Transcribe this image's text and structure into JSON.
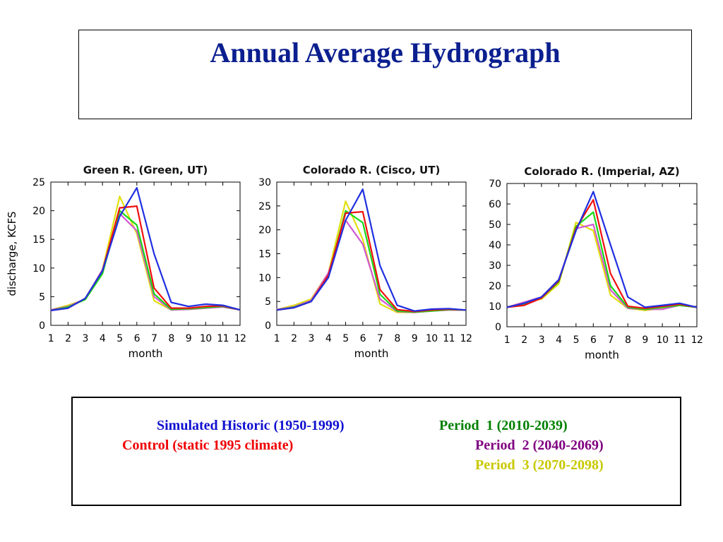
{
  "title": "Annual Average Hydrograph",
  "series_styles": [
    {
      "key": "historic",
      "color": "#1f2fe0"
    },
    {
      "key": "control",
      "color": "#f01010"
    },
    {
      "key": "p1",
      "color": "#18d818"
    },
    {
      "key": "p2",
      "color": "#d05ad0"
    },
    {
      "key": "p3",
      "color": "#e0e010"
    }
  ],
  "legend": {
    "historic": "Simulated Historic (1950-1999)",
    "p1": "Period  1 (2010-2039)",
    "control": "Control (static 1995 climate)",
    "p2": "Period  2 (2040-2069)",
    "p3": "Period  3 (2070-2098)",
    "colors": {
      "historic": "#1010d0",
      "p1": "#008000",
      "control": "#f00000",
      "p2": "#800080",
      "p3": "#c8c800"
    }
  },
  "chart_data": [
    {
      "type": "line",
      "title": "Green R. (Green, UT)",
      "xlabel": "month",
      "ylabel": "discharge, KCFS",
      "x": [
        1,
        2,
        3,
        4,
        5,
        6,
        7,
        8,
        9,
        10,
        11,
        12
      ],
      "xticks": [
        "1",
        "2",
        "3",
        "4",
        "5",
        "6",
        "7",
        "8",
        "9",
        "10",
        "11",
        "12"
      ],
      "yticks": [
        0,
        5,
        10,
        15,
        20,
        25
      ],
      "ylim": [
        0,
        25
      ],
      "series": [
        {
          "key": "historic",
          "values": [
            2.6,
            3.0,
            4.7,
            9.5,
            19.0,
            24.0,
            12.5,
            4.0,
            3.3,
            3.7,
            3.5,
            2.7
          ]
        },
        {
          "key": "control",
          "values": [
            2.6,
            3.0,
            4.7,
            9.5,
            20.5,
            20.8,
            6.5,
            3.0,
            3.0,
            3.3,
            3.4,
            2.7
          ]
        },
        {
          "key": "p1",
          "values": [
            2.6,
            3.2,
            4.5,
            9.0,
            20.0,
            17.5,
            5.5,
            2.8,
            2.9,
            3.1,
            3.3,
            2.7
          ]
        },
        {
          "key": "p2",
          "values": [
            2.7,
            3.3,
            4.6,
            9.7,
            19.5,
            16.5,
            5.0,
            2.7,
            2.8,
            3.0,
            3.2,
            2.7
          ]
        },
        {
          "key": "p3",
          "values": [
            2.7,
            3.5,
            4.5,
            9.7,
            22.5,
            16.0,
            4.3,
            2.7,
            2.8,
            3.0,
            3.3,
            2.7
          ]
        }
      ]
    },
    {
      "type": "line",
      "title": "Colorado R. (Cisco, UT)",
      "xlabel": "month",
      "ylabel": "",
      "x": [
        1,
        2,
        3,
        4,
        5,
        6,
        7,
        8,
        9,
        10,
        11,
        12
      ],
      "xticks": [
        "1",
        "2",
        "3",
        "4",
        "5",
        "6",
        "7",
        "8",
        "9",
        "10",
        "11",
        "12"
      ],
      "yticks": [
        0,
        5,
        10,
        15,
        20,
        25,
        30
      ],
      "ylim": [
        0,
        30
      ],
      "series": [
        {
          "key": "historic",
          "values": [
            3.2,
            3.7,
            5.0,
            10.0,
            22.0,
            28.5,
            12.5,
            4.2,
            3.0,
            3.4,
            3.5,
            3.2
          ]
        },
        {
          "key": "control",
          "values": [
            3.2,
            3.7,
            5.0,
            10.5,
            23.5,
            23.8,
            7.5,
            3.3,
            2.9,
            3.2,
            3.4,
            3.2
          ]
        },
        {
          "key": "p1",
          "values": [
            3.2,
            3.8,
            5.0,
            10.3,
            24.0,
            21.5,
            6.5,
            3.0,
            2.8,
            3.0,
            3.3,
            3.2
          ]
        },
        {
          "key": "p2",
          "values": [
            3.3,
            3.9,
            5.2,
            11.0,
            22.0,
            17.0,
            5.5,
            2.9,
            2.7,
            3.0,
            3.2,
            3.2
          ]
        },
        {
          "key": "p3",
          "values": [
            3.3,
            4.2,
            5.5,
            11.0,
            26.0,
            18.0,
            4.5,
            2.7,
            2.7,
            3.0,
            3.2,
            3.2
          ]
        }
      ]
    },
    {
      "type": "line",
      "title": "Colorado R. (Imperial, AZ)",
      "xlabel": "month",
      "ylabel": "",
      "x": [
        1,
        2,
        3,
        4,
        5,
        6,
        7,
        8,
        9,
        10,
        11,
        12
      ],
      "xticks": [
        "1",
        "2",
        "3",
        "4",
        "5",
        "6",
        "7",
        "8",
        "9",
        "10",
        "11",
        "12"
      ],
      "yticks": [
        0,
        10,
        20,
        30,
        40,
        50,
        60,
        70
      ],
      "ylim": [
        0,
        70
      ],
      "series": [
        {
          "key": "historic",
          "values": [
            9.5,
            11.5,
            14.5,
            23.0,
            47.0,
            66.0,
            40.0,
            14.5,
            9.5,
            10.5,
            11.5,
            9.5
          ]
        },
        {
          "key": "control",
          "values": [
            9.5,
            10.5,
            14.0,
            22.5,
            48.0,
            62.0,
            26.0,
            10.0,
            9.0,
            10.0,
            11.0,
            9.5
          ]
        },
        {
          "key": "p1",
          "values": [
            9.5,
            11.0,
            14.0,
            22.0,
            49.0,
            56.0,
            20.0,
            9.5,
            8.5,
            9.5,
            10.5,
            9.5
          ]
        },
        {
          "key": "p2",
          "values": [
            9.5,
            12.0,
            14.5,
            23.0,
            48.0,
            50.0,
            18.0,
            9.0,
            8.5,
            8.5,
            10.5,
            9.5
          ]
        },
        {
          "key": "p3",
          "values": [
            9.5,
            12.0,
            13.5,
            21.0,
            51.0,
            47.0,
            15.5,
            9.0,
            8.0,
            9.0,
            10.5,
            9.5
          ]
        }
      ]
    }
  ]
}
